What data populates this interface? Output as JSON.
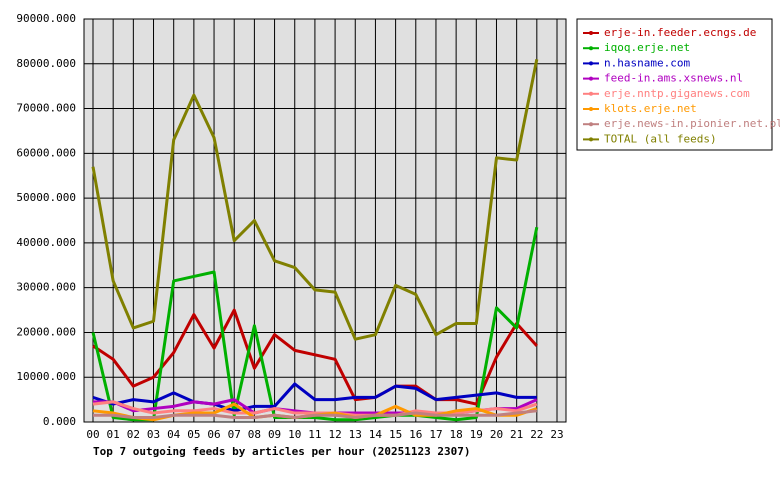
{
  "chart_data": {
    "type": "line",
    "title": "Top 7 outgoing feeds by articles per hour (20251123 2307)",
    "categories": [
      "00",
      "01",
      "02",
      "03",
      "04",
      "05",
      "06",
      "07",
      "08",
      "09",
      "10",
      "11",
      "12",
      "13",
      "14",
      "15",
      "16",
      "17",
      "18",
      "19",
      "20",
      "21",
      "22",
      "23"
    ],
    "ylim": [
      0,
      90000
    ],
    "yticks": [
      {
        "value": 0,
        "label": "0.000"
      },
      {
        "value": 10000,
        "label": "10000.000"
      },
      {
        "value": 20000,
        "label": "20000.000"
      },
      {
        "value": 30000,
        "label": "30000.000"
      },
      {
        "value": 40000,
        "label": "40000.000"
      },
      {
        "value": 50000,
        "label": "50000.000"
      },
      {
        "value": 60000,
        "label": "60000.000"
      },
      {
        "value": 70000,
        "label": "70000.000"
      },
      {
        "value": 80000,
        "label": "80000.000"
      },
      {
        "value": 90000,
        "label": "90000.000"
      }
    ],
    "grid": true,
    "legend": "right",
    "series": [
      {
        "name": "erje-in.feeder.ecngs.de",
        "color": "#c00000",
        "values": [
          17000,
          14000,
          8000,
          10000,
          15500,
          24000,
          16500,
          25000,
          12000,
          19500,
          16000,
          15000,
          14000,
          5000,
          5500,
          8000,
          8000,
          5000,
          5000,
          4000,
          14500,
          22000,
          17000,
          null
        ]
      },
      {
        "name": "iqoq.erje.net",
        "color": "#00b000",
        "values": [
          20000,
          1000,
          500,
          500,
          31500,
          32500,
          33500,
          1500,
          21500,
          1000,
          1000,
          1000,
          500,
          500,
          1000,
          1500,
          1500,
          1000,
          500,
          1000,
          25500,
          21000,
          43500,
          null
        ]
      },
      {
        "name": "n.hasname.com",
        "color": "#0000c0",
        "values": [
          5500,
          4000,
          5000,
          4500,
          6500,
          4500,
          4000,
          2500,
          3500,
          3500,
          8500,
          5000,
          5000,
          5500,
          5500,
          8000,
          7500,
          5000,
          5500,
          6000,
          6500,
          5500,
          5500,
          null
        ]
      },
      {
        "name": "feed-in.ams.xsnews.nl",
        "color": "#b000c0",
        "values": [
          4500,
          4500,
          2500,
          3000,
          3500,
          4500,
          4000,
          5000,
          2000,
          3000,
          2500,
          2000,
          2000,
          2000,
          2000,
          2000,
          2000,
          2000,
          2000,
          2500,
          3000,
          3000,
          5000,
          null
        ]
      },
      {
        "name": "erje.nntp.giganews.com",
        "color": "#ff8080",
        "values": [
          4000,
          4500,
          3000,
          2000,
          2500,
          2500,
          3000,
          2000,
          2000,
          3000,
          2000,
          2000,
          2000,
          1500,
          1500,
          1500,
          2500,
          2000,
          2000,
          2500,
          3000,
          2500,
          4000,
          null
        ]
      },
      {
        "name": "klots.erje.net",
        "color": "#ff9900",
        "values": [
          2500,
          2000,
          1000,
          500,
          1500,
          2000,
          2000,
          4000,
          1000,
          1500,
          1000,
          1500,
          2000,
          1000,
          1500,
          3500,
          1500,
          1500,
          2500,
          3000,
          1500,
          1500,
          3000,
          null
        ]
      },
      {
        "name": "erje.news-in.pionier.net.pl",
        "color": "#c08080",
        "values": [
          1500,
          1500,
          1000,
          1000,
          1500,
          1500,
          1500,
          1000,
          1000,
          1500,
          1000,
          1500,
          1500,
          1000,
          1500,
          1500,
          2000,
          1500,
          1500,
          1500,
          1500,
          2000,
          2500,
          null
        ]
      },
      {
        "name": "TOTAL (all feeds)",
        "color": "#808000",
        "values": [
          57000,
          31500,
          21000,
          22500,
          63000,
          73000,
          63500,
          40500,
          45000,
          36000,
          34500,
          29500,
          29000,
          18500,
          19500,
          30500,
          28500,
          19500,
          22000,
          22000,
          59000,
          58500,
          81000,
          null
        ]
      }
    ]
  }
}
